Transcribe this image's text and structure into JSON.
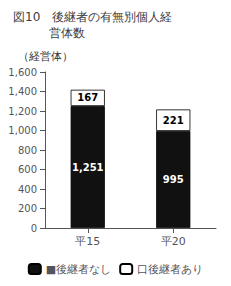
{
  "chart_data": {
    "type": "bar",
    "title": "図10　後継者の有無別個人経\n　　　営体数",
    "ylabel": "（経営体）",
    "categories": [
      "平15",
      "平20"
    ],
    "stacked": true,
    "data_labels": true,
    "grid": false,
    "legend": "bottom",
    "series": [
      {
        "name": "■後継者なし",
        "color": "#111111",
        "values": [
          1251,
          995
        ],
        "value_labels": [
          "1,251",
          "995"
        ]
      },
      {
        "name": "口後継者あり",
        "color": "#ffffff",
        "values": [
          167,
          221
        ],
        "value_labels": [
          "167",
          "221"
        ]
      }
    ],
    "ylim": [
      0,
      1600
    ],
    "yticks": [
      0,
      200,
      400,
      600,
      800,
      {
        "value": 1000,
        "label": "1,000"
      },
      {
        "value": 1200,
        "label": "1,200"
      },
      {
        "value": 1400,
        "label": "1,400"
      },
      {
        "value": 1600,
        "label": "1,600"
      }
    ]
  }
}
